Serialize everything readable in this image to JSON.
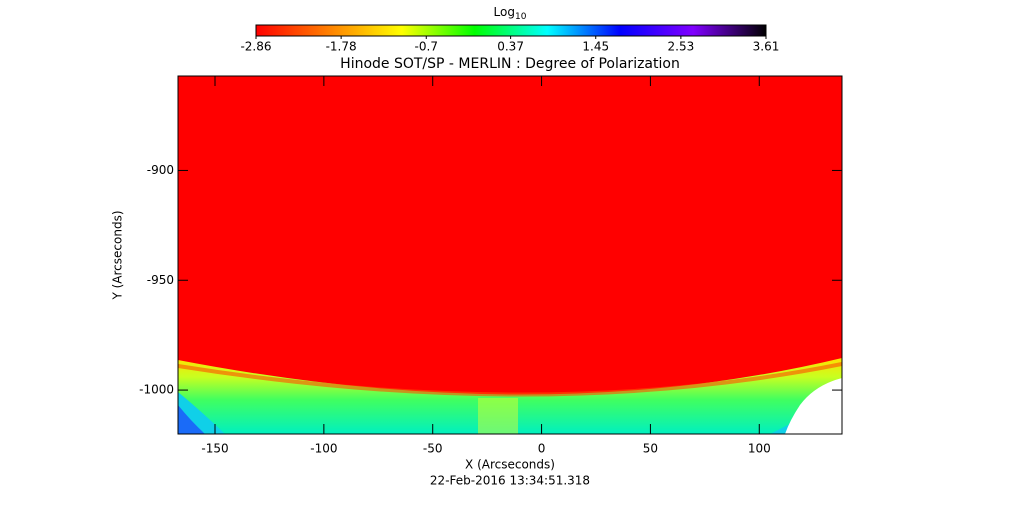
{
  "chart_data": {
    "type": "image",
    "title": "Hinode SOT/SP - MERLIN : Degree of Polarization",
    "x_label": "X (Arcseconds)",
    "y_label": "Y (Arcseconds)",
    "footer": "22-Feb-2016 13:34:51.318",
    "xlim": [
      -167,
      138
    ],
    "ylim": [
      -1020,
      -857
    ],
    "xticks": [
      -150,
      -100,
      -50,
      0,
      50,
      100
    ],
    "yticks": [
      -1000,
      -950,
      -900
    ],
    "colorbar": {
      "label": "Log",
      "label_subscript": "10",
      "lim": [
        -2.86,
        3.61
      ],
      "ticks": [
        -2.86,
        -1.78,
        -0.7,
        0.37,
        1.45,
        2.53,
        3.61
      ],
      "colormap": [
        "#ff0000",
        "#ff8000",
        "#ffff00",
        "#00ff00",
        "#00ffff",
        "#0000ff",
        "#8000ff",
        "#000000"
      ]
    }
  }
}
